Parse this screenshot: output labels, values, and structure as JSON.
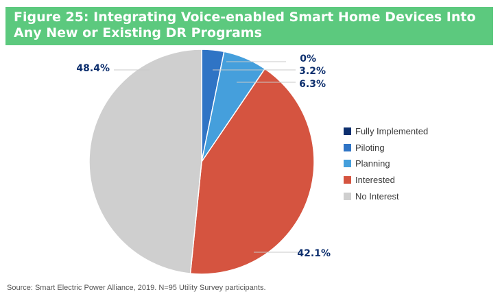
{
  "figure": {
    "title": "Figure 25: Integrating Voice-enabled Smart Home Devices Into Any New or Existing DR Programs",
    "source": "Source: Smart Electric Power Alliance, 2019. N=95 Utility Survey participants.",
    "title_bg_color": "#5cc97e"
  },
  "chart_data": {
    "type": "pie",
    "title": "Figure 25: Integrating Voice-enabled Smart Home Devices Into Any New or Existing DR Programs",
    "start_angle": "12 o'clock",
    "direction": "clockwise",
    "legend_position": "right",
    "slices": [
      {
        "label": "Fully Implemented",
        "value": 0,
        "value_label": "0%",
        "color": "#0d2f6e"
      },
      {
        "label": "Piloting",
        "value": 3.2,
        "value_label": "3.2%",
        "color": "#2f74c5"
      },
      {
        "label": "Planning",
        "value": 6.3,
        "value_label": "6.3%",
        "color": "#459fdc"
      },
      {
        "label": "Interested",
        "value": 42.1,
        "value_label": "42.1%",
        "color": "#d55440"
      },
      {
        "label": "No Interest",
        "value": 48.4,
        "value_label": "48.4%",
        "color": "#cfcfcf"
      }
    ]
  }
}
